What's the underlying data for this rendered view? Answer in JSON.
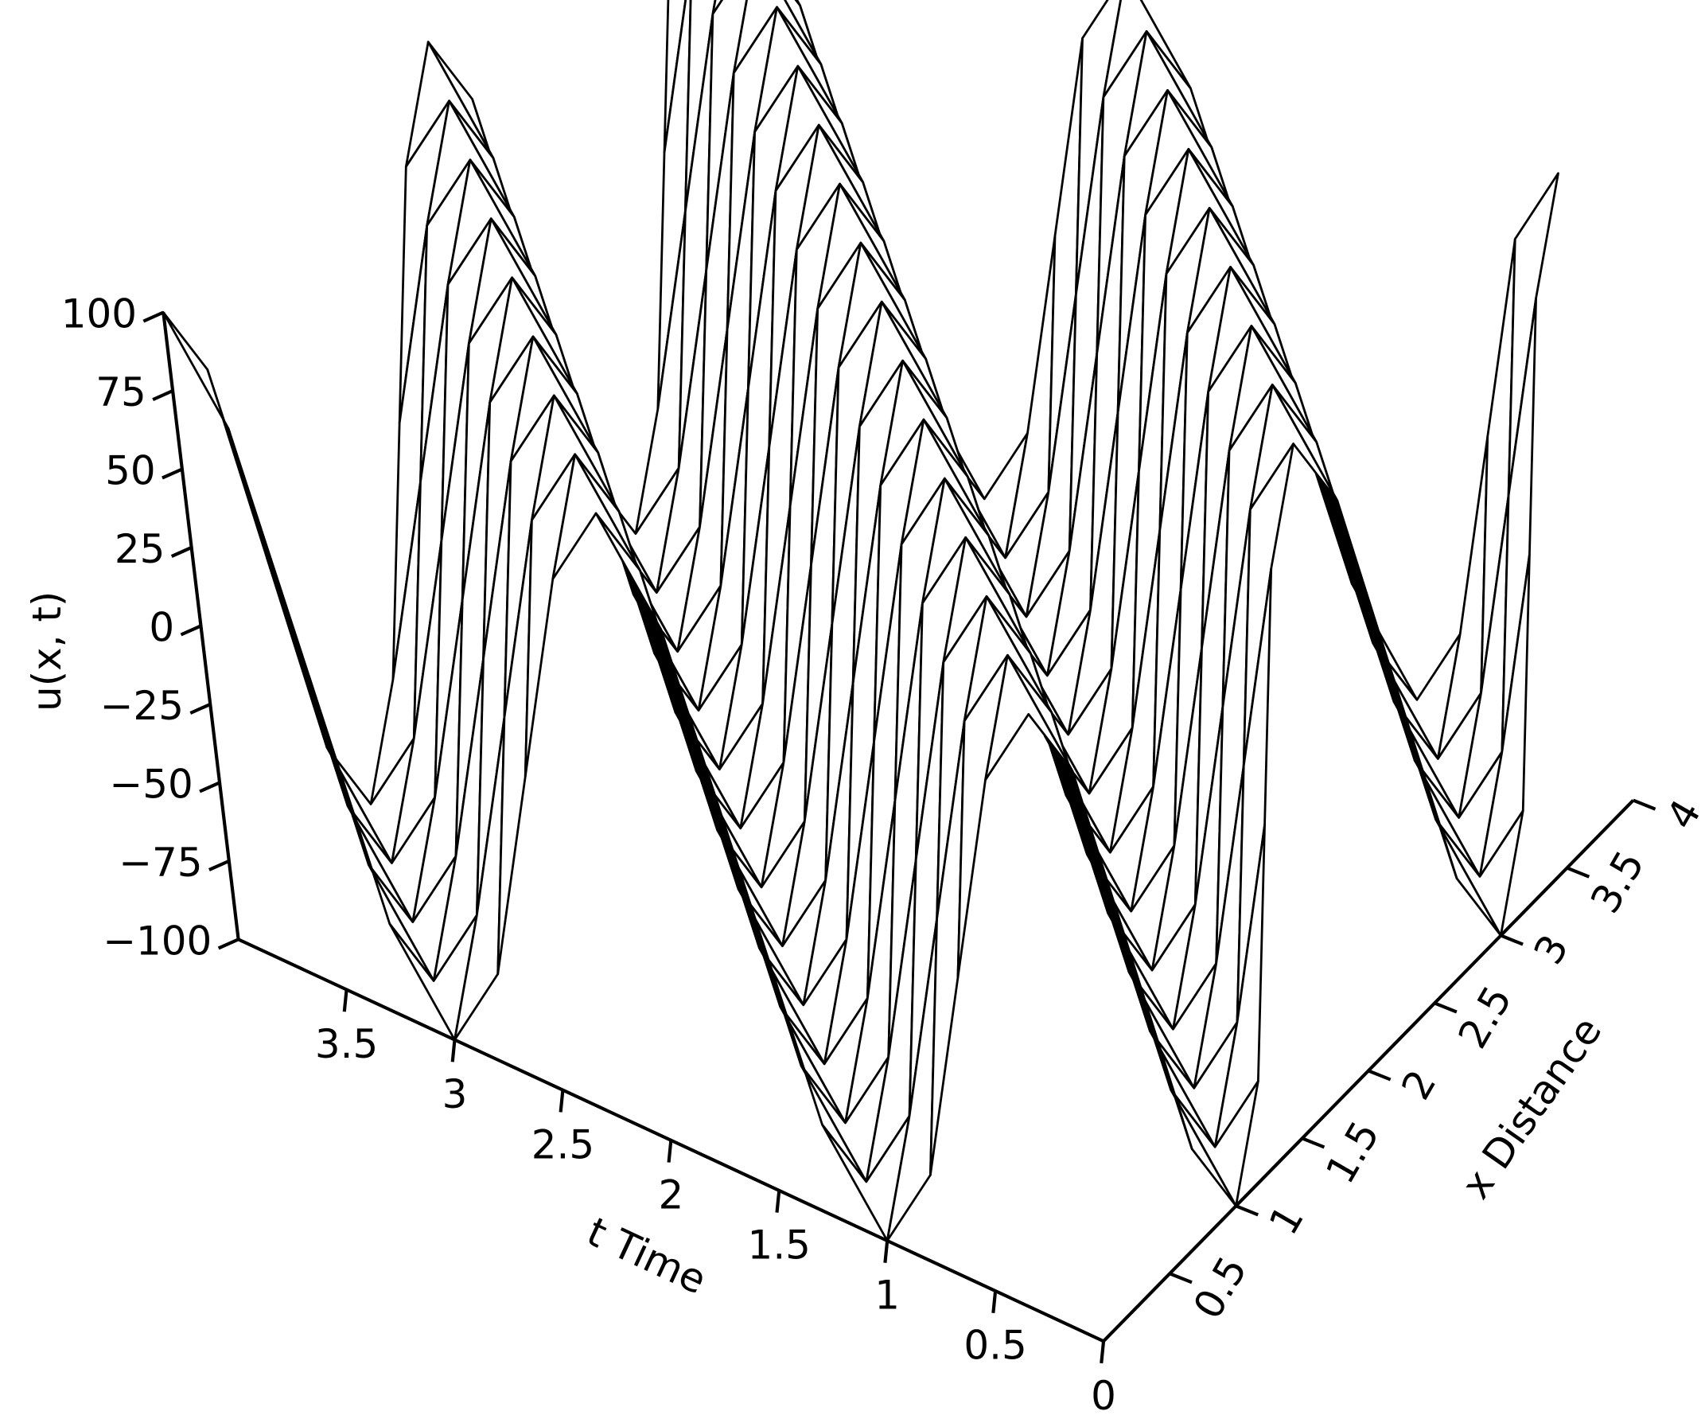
{
  "chart_data": {
    "type": "surface",
    "x_label": "x Distance",
    "y_label": "t Time",
    "z_label": "u(x, t)",
    "color": "#000000",
    "fill": "#ffffff",
    "x": [
      0,
      0.25,
      0.5,
      0.75,
      1,
      1.25,
      1.5,
      1.75,
      2,
      2.25,
      2.5,
      2.75,
      3,
      3.25,
      3.5,
      3.75,
      4
    ],
    "y": [
      0,
      0.25,
      0.5,
      0.75,
      1,
      1.25,
      1.5,
      1.75,
      2,
      2.25,
      2.5,
      2.75,
      3,
      3.25,
      3.5,
      3.75,
      4
    ],
    "z": [
      [
        100,
        71,
        0,
        -71,
        -100,
        -71,
        0,
        71,
        100,
        71,
        0,
        -71,
        -100,
        -71,
        0,
        71,
        100
      ],
      [
        71,
        100,
        71,
        0,
        -71,
        -100,
        -71,
        0,
        71,
        100,
        71,
        0,
        -71,
        -100,
        -71,
        0,
        71
      ],
      [
        0,
        71,
        100,
        71,
        0,
        -71,
        -100,
        -71,
        0,
        71,
        100,
        71,
        0,
        -71,
        -100,
        -71,
        0
      ],
      [
        -71,
        0,
        71,
        100,
        71,
        0,
        -71,
        -100,
        -71,
        0,
        71,
        100,
        71,
        0,
        -71,
        -100,
        -71
      ],
      [
        -100,
        -71,
        0,
        71,
        100,
        71,
        0,
        -71,
        -100,
        -71,
        0,
        71,
        100,
        71,
        0,
        -71,
        -100
      ],
      [
        -71,
        -100,
        -71,
        0,
        71,
        100,
        71,
        0,
        -71,
        -100,
        -71,
        0,
        71,
        100,
        71,
        0,
        -71
      ],
      [
        0,
        -71,
        -100,
        -71,
        0,
        71,
        100,
        71,
        0,
        -71,
        -100,
        -71,
        0,
        71,
        100,
        71,
        0
      ],
      [
        71,
        0,
        -71,
        -100,
        -71,
        0,
        71,
        100,
        71,
        0,
        -71,
        -100,
        -71,
        0,
        71,
        100,
        71
      ],
      [
        100,
        71,
        0,
        -71,
        -100,
        -71,
        0,
        71,
        100,
        71,
        0,
        -71,
        -100,
        -71,
        0,
        71,
        100
      ],
      [
        71,
        100,
        71,
        0,
        -71,
        -100,
        -71,
        0,
        71,
        100,
        71,
        0,
        -71,
        -100,
        -71,
        0,
        71
      ],
      [
        0,
        71,
        100,
        71,
        0,
        -71,
        -100,
        -71,
        0,
        71,
        100,
        71,
        0,
        -71,
        -100,
        -71,
        0
      ],
      [
        -71,
        0,
        71,
        100,
        71,
        0,
        -71,
        -100,
        -71,
        0,
        71,
        100,
        71,
        0,
        -71,
        -100,
        -71
      ],
      [
        -100,
        -71,
        0,
        71,
        100,
        71,
        0,
        -71,
        -100,
        -71,
        0,
        71,
        100,
        71,
        0,
        -71,
        -100
      ],
      [
        -71,
        -100,
        -71,
        0,
        71,
        100,
        71,
        0,
        -71,
        -100,
        -71,
        0,
        71,
        100,
        71,
        0,
        -71
      ],
      [
        0,
        -71,
        -100,
        -71,
        0,
        71,
        100,
        71,
        0,
        -71,
        -100,
        -71,
        0,
        71,
        100,
        71,
        0
      ],
      [
        71,
        0,
        -71,
        -100,
        -71,
        0,
        71,
        100,
        71,
        0,
        -71,
        -100,
        -71,
        0,
        71,
        100,
        71
      ],
      [
        100,
        71,
        0,
        -71,
        -100,
        -71,
        0,
        71,
        100,
        71,
        0,
        -71,
        -100,
        -71,
        0,
        71,
        100
      ]
    ],
    "xlim": [
      0,
      4
    ],
    "ylim": [
      0,
      4
    ],
    "zlim": [
      -100,
      100
    ],
    "xticks": [
      0.5,
      1,
      1.5,
      2,
      2.5,
      3,
      3.5,
      4
    ],
    "yticks": [
      0,
      0.5,
      1,
      1.5,
      2,
      2.5,
      3,
      3.5
    ],
    "zticks": [
      {
        "value": -100,
        "label": "−100"
      },
      {
        "value": -75,
        "label": "−75"
      },
      {
        "value": -50,
        "label": "−50"
      },
      {
        "value": -25,
        "label": "−25"
      },
      0,
      25,
      50,
      75,
      100
    ]
  }
}
